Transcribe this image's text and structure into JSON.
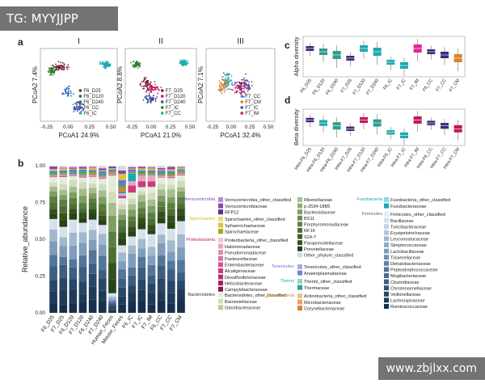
{
  "watermark_top": "TG: MYYJJPP",
  "watermark_bottom": "www.zbjlxx.com",
  "panel_labels": {
    "a": "a",
    "b": "b",
    "c": "c",
    "d": "d"
  },
  "pcoa": [
    {
      "title": "I",
      "xlabel": "PCoA1 24.9%",
      "ylabel": "PCoA2 7.4%",
      "xticks": [
        "-0.25",
        "0.00",
        "0.25",
        "0.50"
      ],
      "legend": [
        "F6_D25",
        "F6_D120",
        "F6_D240",
        "F6_CC",
        "F6_IC"
      ],
      "colors": [
        "#7a1a3a",
        "#3b4fa0",
        "#2e7d32",
        "#1565c0",
        "#1aa9b0"
      ]
    },
    {
      "title": "II",
      "xlabel": "PCoA1 21.0%",
      "ylabel": "PCoA2 8.8%",
      "xticks": [
        "-0.25",
        "0.00",
        "0.25",
        "0.50"
      ],
      "legend": [
        "F7_D25",
        "F7_D120",
        "F7_D240",
        "F7_IC",
        "F7_CC"
      ],
      "colors": [
        "#7a1a3a",
        "#c2185b",
        "#3b4fa0",
        "#2e7d32",
        "#1aa9b0"
      ]
    },
    {
      "title": "III",
      "xlabel": "PCoA1 32.4%",
      "ylabel": "PCoA2 7.1%",
      "xticks": [
        "-0.25",
        "0.00",
        "0.25",
        "0.50"
      ],
      "legend": [
        "F7_CC",
        "F7_CM",
        "F7_IC",
        "F7_IM"
      ],
      "colors": [
        "#1aa9b0",
        "#d9812e",
        "#3b4fa0",
        "#c2185b"
      ]
    }
  ],
  "alpha": {
    "ylabel": "Alpha diversity",
    "categories": [
      "F6_D25",
      "F6_D120",
      "F6_D240",
      "F7_D25",
      "F7_D120",
      "F7_D240",
      "F6_IC",
      "F7_IC",
      "F7_IM",
      "F6_CC",
      "F7_CC",
      "F7_CM"
    ],
    "colors": [
      "#3d2a7a",
      "#2e9d8f",
      "#2e9d8f",
      "#3d2a7a",
      "#1aa9b0",
      "#1aa9b0",
      "#1aa9b0",
      "#1aa9b0",
      "#e4239a",
      "#3d2a7a",
      "#3d2a7a",
      "#d9812e"
    ]
  },
  "beta": {
    "ylabel": "Beta diversity",
    "categories": [
      "Intra-F6_D25",
      "Intra-F6_D120",
      "Intra-F6_D240",
      "Intra-F7_D25",
      "Intra-F7_D120",
      "Intra-F7_D240",
      "Intra-F6_IC",
      "Intra-F7_IC",
      "Intra-F7_IM",
      "Intra-F6_CC",
      "Intra-F7_CC",
      "Intra-F7_CM"
    ],
    "colors": [
      "#3d2a7a",
      "#1aa9b0",
      "#2e9d8f",
      "#3d2a7a",
      "#c2185b",
      "#2e9d8f",
      "#1aa9b0",
      "#1aa9b0",
      "#c2185b",
      "#3d2a7a",
      "#3d2a7a",
      "#c2185b"
    ]
  },
  "stacked": {
    "ylabel": "Relative_abundance",
    "yticks": [
      "0.00",
      "0.25",
      "0.50",
      "0.75",
      "1.00"
    ],
    "categories": [
      "F6_D25",
      "F7_D25",
      "F6_D120",
      "F7_D120",
      "F6_D240",
      "F7_D240",
      "Human_Feces",
      "Mouse_Feces",
      "F6_IC",
      "F7_IC",
      "F7_IM",
      "F6_CC",
      "F7_CC",
      "F7_CM"
    ]
  },
  "legend_groups": [
    {
      "phylum": "Verrucomicrobia",
      "color": "#7b3fbf",
      "taxa": [
        [
          "Verrucomicrobia_other_classified",
          "#b58ad6"
        ],
        [
          "Verrucomicrobiaceae",
          "#8e44ad"
        ],
        [
          "RFP12",
          "#5b2c8a"
        ]
      ]
    },
    {
      "phylum": "Spirochaetes",
      "color": "#d4c21a",
      "taxa": [
        [
          "Spirochaetes_other_classified",
          "#e8df7a"
        ],
        [
          "Sphaerochaetaceae",
          "#d6c640"
        ],
        [
          "Spirochaetaceae",
          "#b3a312"
        ]
      ]
    },
    {
      "phylum": "Proteobacteria",
      "color": "#c2185b",
      "taxa": [
        [
          "Proteobacteria_other_classified",
          "#f3c6d8"
        ],
        [
          "Halomonadaceae",
          "#eaa3c0"
        ],
        [
          "Pseudomonadaceae",
          "#e38aae"
        ],
        [
          "Pasteurellaceae",
          "#dc6f9c"
        ],
        [
          "Enterobacteriaceae",
          "#d4558a"
        ],
        [
          "Alcaligenaceae",
          "#cc3b78"
        ],
        [
          "Desulfovibrionaceae",
          "#b72d69"
        ],
        [
          "Helicobacteraceae",
          "#a2225b"
        ],
        [
          "Campylobacteraceae",
          "#8c184c"
        ]
      ]
    },
    {
      "phylum": "Bacteroidetes",
      "color": "#333333",
      "taxa": [
        [
          "Bacteroidetes_other_classified",
          "#e4ecd8"
        ],
        [
          "Barnesiellaceae",
          "#cfdcbd"
        ],
        [
          "Odoribacteraceae",
          "#b9cba2"
        ]
      ]
    },
    {
      "phylum": "",
      "color": "#333333",
      "taxa": [
        [
          "Rikenellaceae",
          "#a6bd8c"
        ],
        [
          "p-2534-18B5",
          "#93ad77"
        ],
        [
          "Bacteroidaceae",
          "#7f9e62"
        ],
        [
          "BS11",
          "#6c8f4f"
        ],
        [
          "Porphyromonadaceae",
          "#5b7f40"
        ],
        [
          "RF16",
          "#4c6f33"
        ],
        [
          "S24-7",
          "#3f6028"
        ],
        [
          "Paraprevotellaceae",
          "#33511f"
        ],
        [
          "Prevotellaceae",
          "#284218"
        ],
        [
          "Other_phylum_classified",
          "#d9d9d9"
        ]
      ]
    },
    {
      "phylum": "Tenericutes",
      "color": "#6a6fd6",
      "taxa": [
        [
          "Tenericutes_other_classified",
          "#a9acec"
        ],
        [
          "Anaeroplasmataceae",
          "#7a7fe0"
        ]
      ]
    },
    {
      "phylum": "Thermi",
      "color": "#2ca58d",
      "taxa": [
        [
          "Thermi_other_classified",
          "#8fd6c6"
        ],
        [
          "Thermaceae",
          "#2ca58d"
        ]
      ]
    },
    {
      "phylum": "Actinobacteria",
      "color": "#d9812e",
      "taxa": [
        [
          "Actinobacteria_other_classified",
          "#efc08f"
        ],
        [
          "Microbacteriaceae",
          "#e4a060"
        ],
        [
          "Corynebacteriaceae",
          "#d9812e"
        ]
      ]
    },
    {
      "phylum": "Fusobacteria",
      "color": "#1aa9b0",
      "taxa": [
        [
          "Fusobacteria_other_classified",
          "#8fd9dc"
        ],
        [
          "Fusobacteriaceae",
          "#1aa9b0"
        ]
      ]
    },
    {
      "phylum": "Firmicutes",
      "color": "#4a6a8a",
      "taxa": [
        [
          "Firmicutes_other_classified",
          "#e6edf4"
        ],
        [
          "Bacillaceae",
          "#d5e0eb"
        ],
        [
          "Turicibacteraceae",
          "#c4d3e2"
        ],
        [
          "Erysipelotrichaceae",
          "#b2c6d9"
        ],
        [
          "Leuconostocaceae",
          "#a1b8cf"
        ],
        [
          "Streptococcaceae",
          "#90abc5"
        ],
        [
          "Lactobacillaceae",
          "#7f9dbb"
        ],
        [
          "Tissierellaceae",
          "#6e90b1"
        ],
        [
          "Dehalobacteriaceae",
          "#6083a6"
        ],
        [
          "Peptostreptococcaceae",
          "#53769a"
        ],
        [
          "Mogibacteriaceae",
          "#476a8d"
        ],
        [
          "Clostridiaceae",
          "#3c5e80"
        ],
        [
          "Christensenellaceae",
          "#325273"
        ],
        [
          "Veillonellaceae",
          "#284666"
        ],
        [
          "Lachnospiraceae",
          "#1f3a59"
        ],
        [
          "Ruminococcaceae",
          "#172f4c"
        ]
      ]
    }
  ]
}
